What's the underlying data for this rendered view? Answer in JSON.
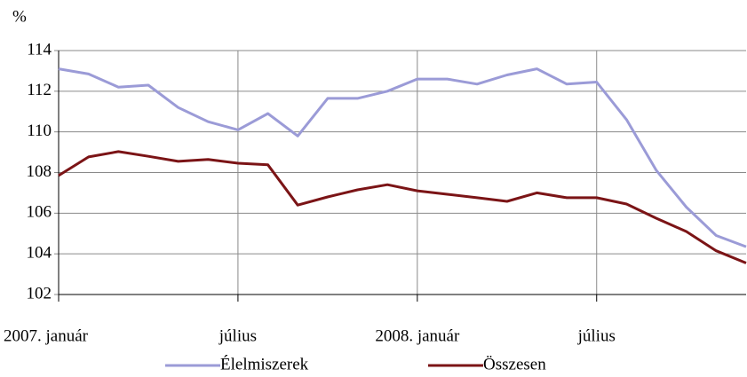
{
  "chart_data": {
    "type": "line",
    "y_label": "%",
    "categories": [
      "2007. január",
      null,
      null,
      null,
      null,
      null,
      "július",
      null,
      null,
      null,
      null,
      null,
      "2008. január",
      null,
      null,
      null,
      null,
      null,
      "július",
      null,
      null,
      null,
      null,
      null
    ],
    "series": [
      {
        "name": "Élelmiszerek",
        "color": "#9b9bd7",
        "values": [
          113.1,
          112.85,
          112.2,
          112.3,
          111.2,
          110.5,
          110.1,
          110.9,
          109.8,
          111.65,
          111.65,
          112.0,
          112.6,
          112.6,
          112.35,
          112.8,
          113.1,
          112.35,
          112.45,
          110.6,
          108.1,
          106.3,
          104.9,
          104.35
        ]
      },
      {
        "name": "Összesen",
        "color": "#7b1416",
        "values": [
          107.85,
          108.77,
          109.03,
          108.8,
          108.55,
          108.64,
          108.46,
          108.38,
          106.4,
          106.8,
          107.15,
          107.4,
          107.1,
          106.93,
          106.76,
          106.58,
          107.0,
          106.76,
          106.76,
          106.45,
          105.75,
          105.1,
          104.15,
          103.55
        ]
      }
    ],
    "ylim": [
      102,
      114
    ],
    "yticks": [
      102,
      104,
      106,
      108,
      110,
      112,
      114
    ],
    "grid": true,
    "legend": "bottom"
  }
}
